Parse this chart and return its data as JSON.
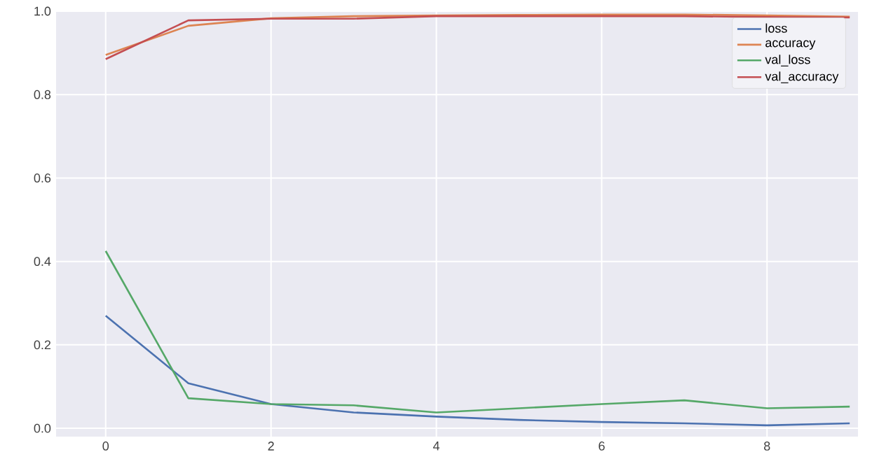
{
  "chart_data": {
    "type": "line",
    "x": [
      0,
      1,
      2,
      3,
      4,
      5,
      6,
      7,
      8,
      9
    ],
    "series": [
      {
        "name": "loss",
        "color": "#4c72b0",
        "values": [
          0.27,
          0.108,
          0.058,
          0.038,
          0.028,
          0.02,
          0.015,
          0.012,
          0.007,
          0.012
        ]
      },
      {
        "name": "accuracy",
        "color": "#dd8452",
        "values": [
          0.895,
          0.965,
          0.983,
          0.988,
          0.99,
          0.991,
          0.992,
          0.992,
          0.99,
          0.987
        ]
      },
      {
        "name": "val_loss",
        "color": "#55a868",
        "values": [
          0.425,
          0.072,
          0.058,
          0.055,
          0.038,
          0.048,
          0.058,
          0.067,
          0.048,
          0.052
        ]
      },
      {
        "name": "val_accuracy",
        "color": "#c44e52",
        "values": [
          0.885,
          0.978,
          0.982,
          0.982,
          0.988,
          0.988,
          0.988,
          0.988,
          0.986,
          0.985
        ]
      }
    ],
    "xlim": [
      -0.6,
      9.1
    ],
    "ylim": [
      -0.02,
      1.0
    ],
    "xticks": [
      0,
      2,
      4,
      6,
      8
    ],
    "yticks": [
      {
        "value": 0,
        "label": "0.0"
      },
      {
        "value": 0.2,
        "label": "0.2"
      },
      {
        "value": 0.4,
        "label": "0.4"
      },
      {
        "value": 0.6,
        "label": "0.6"
      },
      {
        "value": 0.8,
        "label": "0.8"
      },
      {
        "value": 1.0,
        "label": "1.0"
      }
    ],
    "grid": true,
    "legend": "top right",
    "marker": "none",
    "line_style": "solid"
  }
}
